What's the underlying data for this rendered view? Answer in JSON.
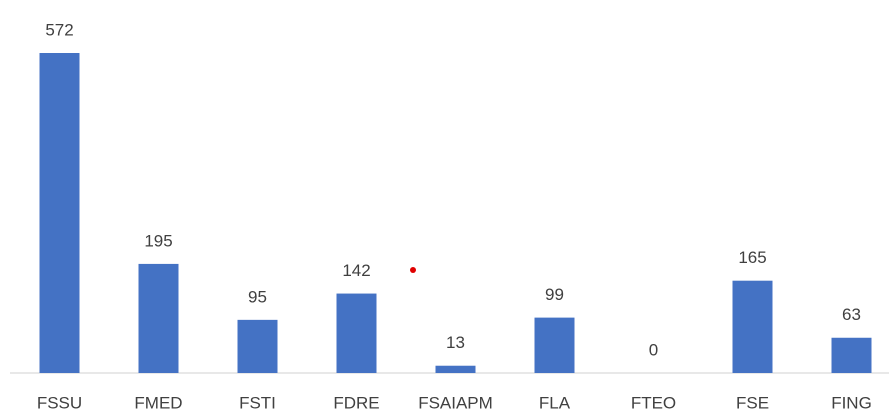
{
  "chart_data": {
    "type": "bar",
    "categories": [
      "FSSU",
      "FMED",
      "FSTI",
      "FDRE",
      "FSAIAPM",
      "FLA",
      "FTEO",
      "FSE",
      "FING"
    ],
    "values": [
      572,
      195,
      95,
      142,
      13,
      99,
      0,
      165,
      63
    ],
    "color": "#4472c4"
  }
}
